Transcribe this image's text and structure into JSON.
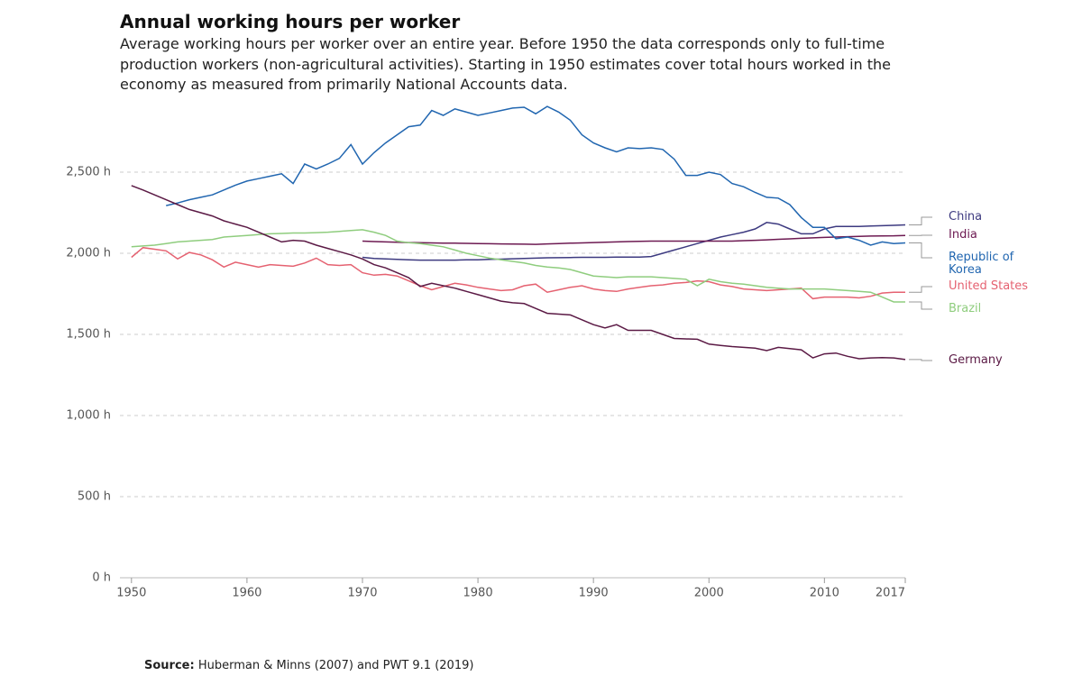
{
  "chart_data": {
    "type": "line",
    "title": "Annual working hours per worker",
    "subtitle": "Average working hours per worker over an entire year. Before 1950 the data corresponds only to full-time production workers (non-agricultural activities). Starting in 1950 estimates cover total hours worked in the economy as measured from primarily National Accounts data.",
    "source_label": "Source:",
    "source": "Huberman & Minns (2007) and PWT 9.1 (2019)",
    "x": [
      1950,
      1951,
      1952,
      1953,
      1954,
      1955,
      1956,
      1957,
      1958,
      1959,
      1960,
      1961,
      1962,
      1963,
      1964,
      1965,
      1966,
      1967,
      1968,
      1969,
      1970,
      1971,
      1972,
      1973,
      1974,
      1975,
      1976,
      1977,
      1978,
      1979,
      1980,
      1981,
      1982,
      1983,
      1984,
      1985,
      1986,
      1987,
      1988,
      1989,
      1990,
      1991,
      1992,
      1993,
      1994,
      1995,
      1996,
      1997,
      1998,
      1999,
      2000,
      2001,
      2002,
      2003,
      2004,
      2005,
      2006,
      2007,
      2008,
      2009,
      2010,
      2011,
      2012,
      2013,
      2014,
      2015,
      2016,
      2017
    ],
    "xlim": [
      1949,
      2017
    ],
    "xticks": [
      1950,
      1960,
      1970,
      1980,
      1990,
      2000,
      2010,
      2017
    ],
    "ylim": [
      0,
      2900
    ],
    "yticks": [
      {
        "value": 0,
        "label": "0 h"
      },
      {
        "value": 500,
        "label": "500 h"
      },
      {
        "value": 1000,
        "label": "1,000 h"
      },
      {
        "value": 1500,
        "label": "1,500 h"
      },
      {
        "value": 2000,
        "label": "2,000 h"
      },
      {
        "value": 2500,
        "label": "2,500 h"
      }
    ],
    "grid": true,
    "series": [
      {
        "name": "China",
        "color": "#3d3a80",
        "values": [
          null,
          null,
          null,
          null,
          null,
          null,
          null,
          null,
          null,
          null,
          null,
          null,
          null,
          null,
          null,
          null,
          null,
          null,
          null,
          null,
          1975,
          1968,
          1965,
          1962,
          1960,
          1958,
          1958,
          1958,
          1958,
          1960,
          1960,
          1962,
          1964,
          1966,
          1968,
          1970,
          1972,
          1973,
          1974,
          1975,
          1975,
          1975,
          1976,
          1976,
          1976,
          1980,
          2000,
          2020,
          2040,
          2060,
          2080,
          2100,
          2115,
          2130,
          2150,
          2190,
          2180,
          2150,
          2120,
          2120,
          2150,
          2165,
          2165,
          2165,
          2168,
          2170,
          2172,
          2175
        ]
      },
      {
        "name": "India",
        "color": "#6d1a52",
        "values": [
          null,
          null,
          null,
          null,
          null,
          null,
          null,
          null,
          null,
          null,
          null,
          null,
          null,
          null,
          null,
          null,
          null,
          null,
          null,
          null,
          2075,
          2072,
          2070,
          2068,
          2066,
          2065,
          2064,
          2063,
          2062,
          2061,
          2060,
          2059,
          2058,
          2057,
          2056,
          2055,
          2058,
          2060,
          2062,
          2064,
          2066,
          2068,
          2070,
          2072,
          2074,
          2075,
          2075,
          2075,
          2075,
          2075,
          2075,
          2075,
          2075,
          2078,
          2080,
          2083,
          2086,
          2089,
          2092,
          2095,
          2098,
          2100,
          2102,
          2104,
          2106,
          2107,
          2108,
          2110
        ]
      },
      {
        "name": "Republic of Korea",
        "color": "#2166b0",
        "values": [
          null,
          null,
          null,
          2294,
          2310,
          2330,
          2345,
          2360,
          2390,
          2420,
          2445,
          2460,
          2475,
          2490,
          2430,
          2550,
          2520,
          2550,
          2585,
          2670,
          2550,
          2620,
          2680,
          2730,
          2780,
          2790,
          2880,
          2850,
          2890,
          2870,
          2850,
          2865,
          2880,
          2895,
          2900,
          2860,
          2905,
          2870,
          2820,
          2730,
          2680,
          2650,
          2625,
          2650,
          2645,
          2650,
          2640,
          2580,
          2480,
          2480,
          2500,
          2485,
          2430,
          2410,
          2375,
          2345,
          2340,
          2300,
          2220,
          2160,
          2160,
          2090,
          2100,
          2080,
          2050,
          2070,
          2060,
          2064
        ]
      },
      {
        "name": "United States",
        "color": "#e56271",
        "values": [
          1975,
          2035,
          2025,
          2015,
          1965,
          2005,
          1990,
          1960,
          1915,
          1945,
          1930,
          1915,
          1930,
          1925,
          1920,
          1940,
          1970,
          1930,
          1925,
          1930,
          1880,
          1865,
          1870,
          1860,
          1830,
          1800,
          1775,
          1795,
          1815,
          1805,
          1790,
          1780,
          1770,
          1775,
          1800,
          1810,
          1760,
          1775,
          1790,
          1800,
          1780,
          1770,
          1765,
          1780,
          1790,
          1800,
          1805,
          1815,
          1820,
          1830,
          1825,
          1805,
          1795,
          1780,
          1775,
          1770,
          1775,
          1780,
          1785,
          1720,
          1730,
          1730,
          1730,
          1725,
          1735,
          1755,
          1760,
          1760
        ]
      },
      {
        "name": "Brazil",
        "color": "#8fcd7e",
        "values": [
          2040,
          2045,
          2050,
          2060,
          2070,
          2075,
          2080,
          2085,
          2100,
          2105,
          2110,
          2115,
          2120,
          2122,
          2125,
          2125,
          2127,
          2130,
          2135,
          2140,
          2145,
          2130,
          2110,
          2075,
          2065,
          2060,
          2050,
          2040,
          2020,
          2000,
          1985,
          1970,
          1960,
          1950,
          1940,
          1925,
          1915,
          1910,
          1900,
          1880,
          1860,
          1855,
          1850,
          1855,
          1855,
          1855,
          1850,
          1845,
          1840,
          1800,
          1840,
          1825,
          1815,
          1810,
          1800,
          1790,
          1785,
          1780,
          1780,
          1780,
          1780,
          1775,
          1770,
          1765,
          1760,
          1730,
          1700,
          1700
        ]
      },
      {
        "name": "Germany",
        "color": "#5b1a45",
        "values": [
          2417,
          2390,
          2360,
          2330,
          2300,
          2270,
          2250,
          2230,
          2200,
          2180,
          2160,
          2130,
          2100,
          2070,
          2080,
          2075,
          2050,
          2030,
          2010,
          1990,
          1965,
          1930,
          1910,
          1880,
          1850,
          1795,
          1815,
          1800,
          1785,
          1765,
          1745,
          1725,
          1705,
          1695,
          1690,
          1660,
          1630,
          1625,
          1620,
          1590,
          1560,
          1540,
          1560,
          1525,
          1525,
          1525,
          1500,
          1475,
          1472,
          1470,
          1440,
          1432,
          1425,
          1420,
          1415,
          1400,
          1420,
          1412,
          1405,
          1355,
          1380,
          1385,
          1365,
          1350,
          1355,
          1357,
          1355,
          1345
        ]
      }
    ]
  }
}
